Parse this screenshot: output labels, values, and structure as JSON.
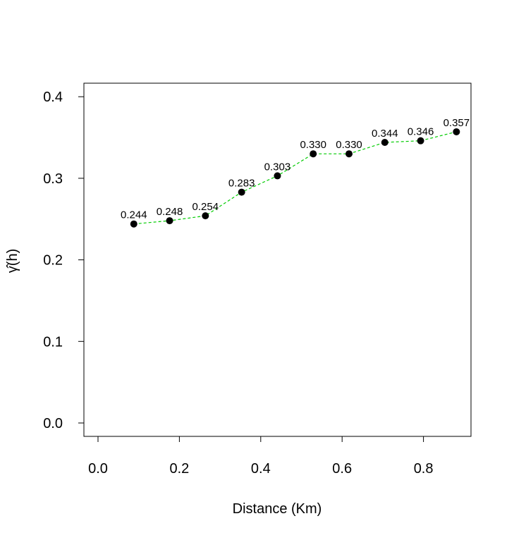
{
  "chart_data": {
    "type": "scatter",
    "xlabel": "Distance (Km)",
    "ylabel": "γ̂(h)",
    "xlim": [
      0.0,
      0.9
    ],
    "ylim": [
      0.0,
      0.4
    ],
    "x_ticks": [
      "0.0",
      "0.2",
      "0.4",
      "0.6",
      "0.8"
    ],
    "y_ticks": [
      "0.0",
      "0.1",
      "0.2",
      "0.3",
      "0.4"
    ],
    "grid": false,
    "series": [
      {
        "x": [
          0.088,
          0.176,
          0.264,
          0.353,
          0.441,
          0.529,
          0.617,
          0.705,
          0.793,
          0.881
        ],
        "values": [
          0.244,
          0.248,
          0.254,
          0.283,
          0.303,
          0.33,
          0.33,
          0.344,
          0.346,
          0.357
        ],
        "labels": [
          "0.244",
          "0.248",
          "0.254",
          "0.283",
          "0.303",
          "0.330",
          "0.330",
          "0.344",
          "0.346",
          "0.357"
        ],
        "marker_color": "#000000",
        "line_color": "#00cc00",
        "line_style": "dashed"
      }
    ]
  }
}
